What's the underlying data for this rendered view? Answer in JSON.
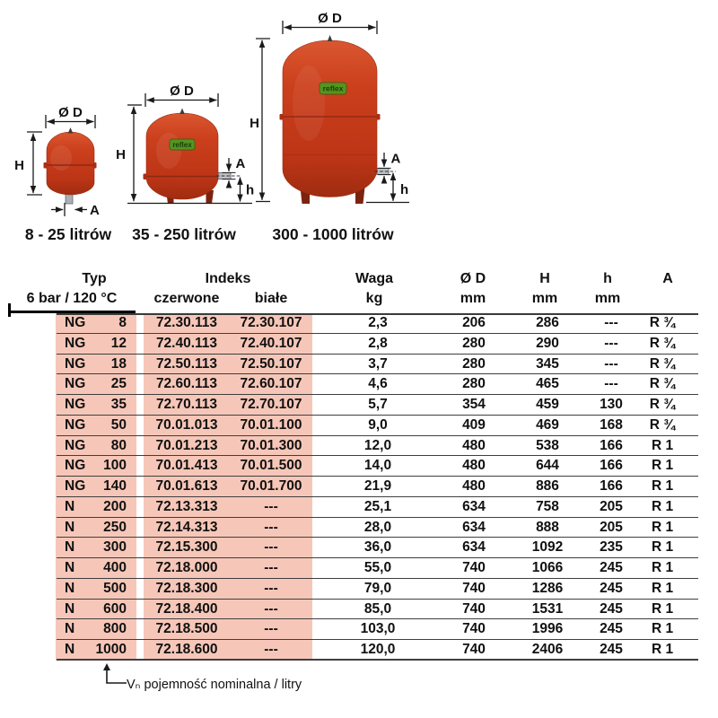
{
  "diagram": {
    "dim_labels": {
      "diameter": "Ø D",
      "height": "H",
      "connection": "A",
      "clearance": "h"
    },
    "captions": {
      "small": "8 - 25 litrów",
      "medium": "35 - 250 litrów",
      "large": "300 - 1000 litrów"
    },
    "logo_text": "reflex"
  },
  "table": {
    "header": {
      "typ": "Typ",
      "typ_sub": "6 bar / 120 °C",
      "indeks": "Indeks",
      "indeks_red": "czerwone",
      "indeks_white": "białe",
      "waga": "Waga",
      "waga_unit": "kg",
      "diameter": "Ø D",
      "diameter_unit": "mm",
      "height": "H",
      "height_unit": "mm",
      "clearance": "h",
      "clearance_unit": "mm",
      "connection": "A"
    },
    "rows": [
      {
        "series": "NG",
        "size": "8",
        "czerwone": "72.30.113",
        "biale": "72.30.107",
        "waga": "2,3",
        "d": "206",
        "H": "286",
        "h": "---",
        "A": "R ¾"
      },
      {
        "series": "NG",
        "size": "12",
        "czerwone": "72.40.113",
        "biale": "72.40.107",
        "waga": "2,8",
        "d": "280",
        "H": "290",
        "h": "---",
        "A": "R ¾"
      },
      {
        "series": "NG",
        "size": "18",
        "czerwone": "72.50.113",
        "biale": "72.50.107",
        "waga": "3,7",
        "d": "280",
        "H": "345",
        "h": "---",
        "A": "R ¾"
      },
      {
        "series": "NG",
        "size": "25",
        "czerwone": "72.60.113",
        "biale": "72.60.107",
        "waga": "4,6",
        "d": "280",
        "H": "465",
        "h": "---",
        "A": "R ¾"
      },
      {
        "series": "NG",
        "size": "35",
        "czerwone": "72.70.113",
        "biale": "72.70.107",
        "waga": "5,7",
        "d": "354",
        "H": "459",
        "h": "130",
        "A": "R ¾"
      },
      {
        "series": "NG",
        "size": "50",
        "czerwone": "70.01.013",
        "biale": "70.01.100",
        "waga": "9,0",
        "d": "409",
        "H": "469",
        "h": "168",
        "A": "R ¾"
      },
      {
        "series": "NG",
        "size": "80",
        "czerwone": "70.01.213",
        "biale": "70.01.300",
        "waga": "12,0",
        "d": "480",
        "H": "538",
        "h": "166",
        "A": "R 1"
      },
      {
        "series": "NG",
        "size": "100",
        "czerwone": "70.01.413",
        "biale": "70.01.500",
        "waga": "14,0",
        "d": "480",
        "H": "644",
        "h": "166",
        "A": "R 1"
      },
      {
        "series": "NG",
        "size": "140",
        "czerwone": "70.01.613",
        "biale": "70.01.700",
        "waga": "21,9",
        "d": "480",
        "H": "886",
        "h": "166",
        "A": "R 1"
      },
      {
        "series": "N",
        "size": "200",
        "czerwone": "72.13.313",
        "biale": "---",
        "waga": "25,1",
        "d": "634",
        "H": "758",
        "h": "205",
        "A": "R 1"
      },
      {
        "series": "N",
        "size": "250",
        "czerwone": "72.14.313",
        "biale": "---",
        "waga": "28,0",
        "d": "634",
        "H": "888",
        "h": "205",
        "A": "R 1"
      },
      {
        "series": "N",
        "size": "300",
        "czerwone": "72.15.300",
        "biale": "---",
        "waga": "36,0",
        "d": "634",
        "H": "1092",
        "h": "235",
        "A": "R 1"
      },
      {
        "series": "N",
        "size": "400",
        "czerwone": "72.18.000",
        "biale": "---",
        "waga": "55,0",
        "d": "740",
        "H": "1066",
        "h": "245",
        "A": "R 1"
      },
      {
        "series": "N",
        "size": "500",
        "czerwone": "72.18.300",
        "biale": "---",
        "waga": "79,0",
        "d": "740",
        "H": "1286",
        "h": "245",
        "A": "R 1"
      },
      {
        "series": "N",
        "size": "600",
        "czerwone": "72.18.400",
        "biale": "---",
        "waga": "85,0",
        "d": "740",
        "H": "1531",
        "h": "245",
        "A": "R 1"
      },
      {
        "series": "N",
        "size": "800",
        "czerwone": "72.18.500",
        "biale": "---",
        "waga": "103,0",
        "d": "740",
        "H": "1996",
        "h": "245",
        "A": "R 1"
      },
      {
        "series": "N",
        "size": "1000",
        "czerwone": "72.18.600",
        "biale": "---",
        "waga": "120,0",
        "d": "740",
        "H": "2406",
        "h": "245",
        "A": "R 1"
      }
    ]
  },
  "footnote": {
    "text": "Vₙ pojemność nominalna / litry"
  },
  "colors": {
    "vessel_red": "#c63d1b",
    "highlight_pink": "#f6c7b8",
    "logo_green": "#55941f",
    "line_dark": "#3f3f3f"
  }
}
